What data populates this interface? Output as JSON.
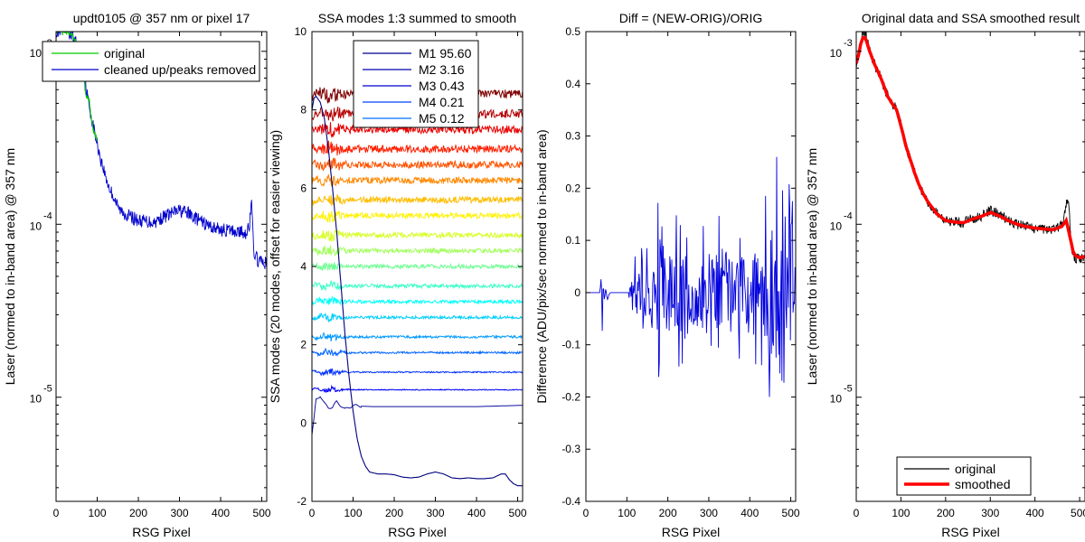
{
  "colors": {
    "original": "#00cc00",
    "cleaned": "#0000cc",
    "diff": "#0000dd",
    "smoothed": "#ff0000",
    "orig_black": "#000000"
  },
  "chart_data": [
    {
      "type": "line",
      "title": "updt0105 @ 357 nm or pixel 17",
      "xlabel": "RSG Pixel",
      "ylabel": "Laser (normed to in-band area) @ 357 nm",
      "xlim": [
        0,
        512
      ],
      "ylim": [
        2.5e-06,
        0.0013
      ],
      "yscale": "log",
      "xticks": [
        "0",
        "100",
        "200",
        "300",
        "400",
        "500"
      ],
      "yticks": [
        {
          "base": "10",
          "exp": "-3"
        },
        {
          "base": "10",
          "exp": "-4"
        },
        {
          "base": "10",
          "exp": "-5"
        }
      ],
      "legend": {
        "placement": "top-right",
        "entries": [
          "original",
          "cleaned up/peaks removed"
        ]
      },
      "series": [
        {
          "name": "original",
          "x": [
            0,
            10,
            15,
            20,
            30,
            40,
            50,
            60,
            65,
            70,
            72,
            75,
            80,
            85,
            90,
            100
          ],
          "y": [
            0.0013,
            0.0013,
            0.0013,
            0.0013,
            0.0013,
            0.0012,
            0.0011,
            0.00095,
            0.0008,
            0.00064,
            0.00057,
            0.00055,
            0.00053,
            0.00043,
            0.00036,
            0.00031
          ]
        },
        {
          "name": "cleaned up/peaks removed",
          "x": [
            0,
            10,
            15,
            20,
            30,
            40,
            50,
            60,
            70,
            80,
            90,
            100,
            110,
            120,
            130,
            140,
            150,
            160,
            180,
            200,
            220,
            240,
            260,
            280,
            300,
            320,
            340,
            360,
            380,
            400,
            420,
            440,
            460,
            470,
            475,
            480,
            485,
            490,
            500,
            510
          ],
          "y": [
            0.0013,
            0.0013,
            0.0013,
            0.0013,
            0.0013,
            0.0012,
            0.0011,
            0.00095,
            0.00065,
            0.00049,
            0.00037,
            0.00029,
            0.00023,
            0.00019,
            0.00016,
            0.000145,
            0.000125,
            0.000118,
            0.000111,
            0.000105,
            0.000104,
            0.000103,
            0.00011,
            0.000116,
            0.00012,
            0.000116,
            0.000108,
            0.000101,
            9.6e-05,
            9.3e-05,
            9.2e-05,
            9.1e-05,
            8.9e-05,
            9.8e-05,
            0.00013,
            7.2e-05,
            6.5e-05,
            6.2e-05,
            6e-05,
            6e-05
          ]
        }
      ]
    },
    {
      "type": "line",
      "title": "SSA modes 1:3 summed to smooth",
      "xlabel": "RSG Pixel",
      "ylabel": "SSA modes (20 modes, offset for easier viewing)",
      "xlim": [
        0,
        512
      ],
      "ylim": [
        -2,
        10
      ],
      "xticks": [
        "0",
        "100",
        "200",
        "300",
        "400",
        "500"
      ],
      "yticks": [
        "-2",
        "0",
        "2",
        "4",
        "6",
        "8",
        "10"
      ],
      "legend": {
        "placement": "top",
        "entries": [
          "M1 95.60",
          "M2 3.16",
          "M3 0.43",
          "M4 0.21",
          "M5 0.12"
        ]
      },
      "mode1": {
        "x": [
          0,
          5,
          10,
          20,
          30,
          40,
          50,
          60,
          70,
          80,
          90,
          100,
          110,
          120,
          130,
          140,
          160,
          180,
          200,
          220,
          240,
          260,
          280,
          300,
          320,
          340,
          360,
          380,
          400,
          420,
          440,
          460,
          470,
          480,
          490,
          500,
          512
        ],
        "y": [
          8.0,
          8.3,
          8.35,
          8.2,
          7.8,
          7.0,
          6.0,
          4.9,
          3.6,
          2.3,
          1.2,
          0.3,
          -0.4,
          -0.85,
          -1.1,
          -1.25,
          -1.3,
          -1.3,
          -1.32,
          -1.38,
          -1.4,
          -1.38,
          -1.3,
          -1.25,
          -1.3,
          -1.4,
          -1.42,
          -1.4,
          -1.42,
          -1.42,
          -1.4,
          -1.3,
          -1.3,
          -1.45,
          -1.55,
          -1.6,
          -1.6
        ]
      },
      "mode2": {
        "x": [
          0,
          5,
          10,
          20,
          30,
          40,
          50,
          60,
          70,
          80,
          90,
          100,
          120,
          150,
          200,
          300,
          400,
          500,
          512
        ],
        "y": [
          -0.3,
          0.1,
          0.6,
          0.7,
          0.5,
          0.4,
          0.4,
          0.55,
          0.45,
          0.35,
          0.4,
          0.45,
          0.43,
          0.42,
          0.42,
          0.42,
          0.42,
          0.45,
          0.45
        ]
      },
      "offset_modes": [
        0.85,
        1.3,
        1.8,
        2.2,
        2.7,
        3.1,
        3.5,
        4.0,
        4.4,
        4.8,
        5.3,
        5.7,
        6.2,
        6.6,
        7.0,
        7.5,
        7.9,
        8.4
      ]
    },
    {
      "type": "line",
      "title": "Diff = (NEW-ORIG)/ORIG",
      "xlabel": "RSG Pixel",
      "ylabel": "Difference (ADU/pix/sec normed to in-band area)",
      "xlim": [
        0,
        512
      ],
      "ylim": [
        -0.4,
        0.5
      ],
      "xticks": [
        "0",
        "100",
        "200",
        "300",
        "400",
        "500"
      ],
      "yticks": [
        "-0.4",
        "-0.3",
        "-0.2",
        "-0.1",
        "0",
        "0.1",
        "0.2",
        "0.3",
        "0.4",
        "0.5"
      ],
      "series": [
        {
          "name": "",
          "x": [
            0,
            30,
            38,
            40,
            42,
            45,
            48,
            52,
            60,
            70,
            80,
            100,
            110,
            120,
            140,
            160,
            180,
            200,
            220,
            240,
            260,
            280,
            300,
            320,
            340,
            360,
            380,
            400,
            420,
            440,
            460,
            470,
            480,
            490,
            500,
            510
          ],
          "y": [
            0,
            0,
            0.02,
            -0.06,
            0.025,
            -0.02,
            0.01,
            -0.01,
            0,
            0,
            0,
            0,
            0.04,
            -0.07,
            0.09,
            -0.12,
            0.19,
            -0.13,
            0.17,
            -0.14,
            0.15,
            -0.12,
            0.18,
            -0.15,
            0.16,
            -0.1,
            0.15,
            -0.16,
            0.14,
            -0.2,
            0.25,
            -0.28,
            0.46,
            -0.25,
            0.47,
            -0.2
          ]
        }
      ]
    },
    {
      "type": "line",
      "title": "Original data and SSA smoothed result",
      "xlabel": "RSG Pixel",
      "ylabel": "Laser (normed to in-band area) @ 357 nm",
      "xlim": [
        0,
        512
      ],
      "ylim": [
        2.5e-06,
        0.0013
      ],
      "yscale": "log",
      "xticks": [
        "0",
        "100",
        "200",
        "300",
        "400",
        "500"
      ],
      "yticks": [
        {
          "base": "10",
          "exp": "-3"
        },
        {
          "base": "10",
          "exp": "-4"
        },
        {
          "base": "10",
          "exp": "-5"
        }
      ],
      "legend": {
        "placement": "bottom-right",
        "entries": [
          "original",
          "smoothed"
        ]
      },
      "series": [
        {
          "name": "original",
          "x": [
            0,
            5,
            10,
            15,
            20,
            25,
            30,
            40,
            50,
            60,
            70,
            80,
            90,
            100,
            110,
            120,
            130,
            140,
            150,
            160,
            180,
            200,
            220,
            240,
            260,
            280,
            300,
            320,
            340,
            360,
            380,
            400,
            420,
            440,
            460,
            470,
            475,
            480,
            485,
            490,
            500,
            510
          ],
          "y": [
            0.00085,
            0.00095,
            0.0011,
            0.0013,
            0.0013,
            0.0012,
            0.001,
            0.00085,
            0.00075,
            0.00065,
            0.00055,
            0.0005,
            0.00047,
            0.00037,
            0.00029,
            0.00024,
            0.0002,
            0.00017,
            0.00015,
            0.000135,
            0.000115,
            0.000105,
            0.000103,
            0.000102,
            0.000108,
            0.000112,
            0.00012,
            0.000115,
            0.000106,
            0.0001,
            9.7e-05,
            9.5e-05,
            9.4e-05,
            9.3e-05,
            9.8e-05,
            0.000128,
            0.00014,
            8e-05,
            6.8e-05,
            6.4e-05,
            6.2e-05,
            6.6e-05
          ]
        },
        {
          "name": "smoothed",
          "x": [
            0,
            5,
            10,
            15,
            20,
            25,
            30,
            40,
            50,
            60,
            70,
            80,
            90,
            100,
            110,
            120,
            130,
            140,
            150,
            160,
            180,
            200,
            220,
            240,
            260,
            280,
            300,
            320,
            340,
            360,
            380,
            400,
            420,
            440,
            460,
            470,
            478,
            485,
            490,
            500,
            510
          ],
          "y": [
            0.00085,
            0.00095,
            0.0011,
            0.0012,
            0.0012,
            0.0011,
            0.001,
            0.00085,
            0.00075,
            0.00065,
            0.00055,
            0.0005,
            0.00046,
            0.00037,
            0.00029,
            0.00024,
            0.0002,
            0.00017,
            0.00015,
            0.000135,
            0.000115,
            0.000105,
            0.000103,
            0.000102,
            0.000107,
            0.000111,
            0.000117,
            0.000112,
            0.000105,
            0.0001,
            9.7e-05,
            9.5e-05,
            9.4e-05,
            9.3e-05,
            9.7e-05,
            0.000105,
            8.5e-05,
            7e-05,
            6.6e-05,
            6.4e-05,
            6.5e-05
          ]
        }
      ]
    }
  ]
}
